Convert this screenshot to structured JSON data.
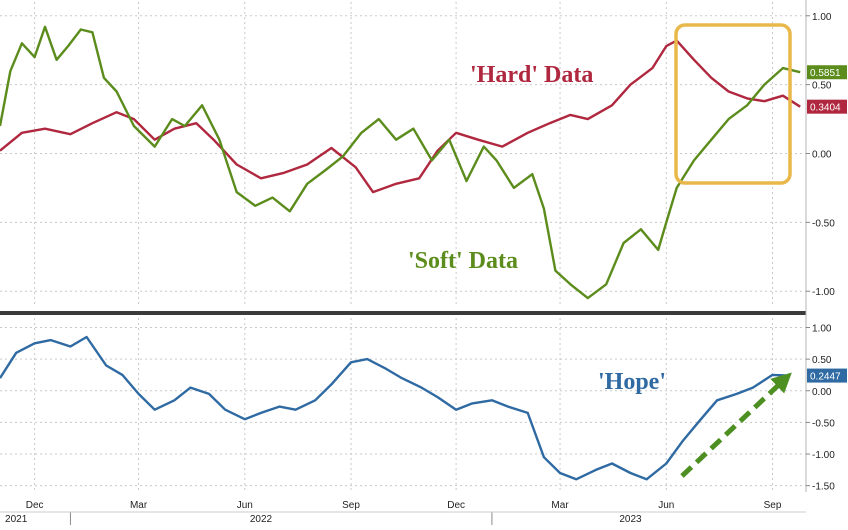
{
  "chart_data": [
    {
      "type": "line",
      "panel": "top",
      "ylim": [
        -1.1,
        1.1
      ],
      "yticks": [
        "1.00",
        "0.50",
        "0.00",
        "-0.50",
        "-1.00"
      ],
      "ytick_values": [
        1.0,
        0.5,
        0.0,
        -0.5,
        -1.0
      ],
      "x_domain": [
        "2021-11-01",
        "2023-09-30"
      ],
      "series": [
        {
          "name": "'Hard' Data",
          "color": "#b0283f",
          "last_label": "0.3404",
          "points": [
            [
              "2021-11-01",
              0.02
            ],
            [
              "2021-11-20",
              0.15
            ],
            [
              "2021-12-10",
              0.18
            ],
            [
              "2022-01-01",
              0.14
            ],
            [
              "2022-01-20",
              0.22
            ],
            [
              "2022-02-10",
              0.3
            ],
            [
              "2022-02-25",
              0.25
            ],
            [
              "2022-03-15",
              0.1
            ],
            [
              "2022-04-01",
              0.18
            ],
            [
              "2022-04-20",
              0.22
            ],
            [
              "2022-05-05",
              0.1
            ],
            [
              "2022-05-25",
              -0.08
            ],
            [
              "2022-06-15",
              -0.18
            ],
            [
              "2022-07-05",
              -0.14
            ],
            [
              "2022-07-25",
              -0.08
            ],
            [
              "2022-08-15",
              0.04
            ],
            [
              "2022-09-05",
              -0.1
            ],
            [
              "2022-09-20",
              -0.28
            ],
            [
              "2022-10-10",
              -0.22
            ],
            [
              "2022-10-30",
              -0.18
            ],
            [
              "2022-11-15",
              0.02
            ],
            [
              "2022-12-01",
              0.15
            ],
            [
              "2022-12-20",
              0.1
            ],
            [
              "2023-01-10",
              0.05
            ],
            [
              "2023-02-01",
              0.15
            ],
            [
              "2023-02-20",
              0.22
            ],
            [
              "2023-03-10",
              0.28
            ],
            [
              "2023-03-25",
              0.25
            ],
            [
              "2023-04-15",
              0.35
            ],
            [
              "2023-05-01",
              0.5
            ],
            [
              "2023-05-20",
              0.62
            ],
            [
              "2023-06-01",
              0.78
            ],
            [
              "2023-06-10",
              0.82
            ],
            [
              "2023-06-25",
              0.68
            ],
            [
              "2023-07-10",
              0.55
            ],
            [
              "2023-07-25",
              0.45
            ],
            [
              "2023-08-10",
              0.4
            ],
            [
              "2023-08-25",
              0.38
            ],
            [
              "2023-09-10",
              0.42
            ],
            [
              "2023-09-25",
              0.34
            ]
          ]
        },
        {
          "name": "'Soft' Data",
          "color": "#5b8c1c",
          "last_label": "0.5851",
          "points": [
            [
              "2021-11-01",
              0.2
            ],
            [
              "2021-11-10",
              0.6
            ],
            [
              "2021-11-20",
              0.8
            ],
            [
              "2021-12-01",
              0.7
            ],
            [
              "2021-12-10",
              0.92
            ],
            [
              "2021-12-20",
              0.68
            ],
            [
              "2021-12-30",
              0.78
            ],
            [
              "2022-01-10",
              0.9
            ],
            [
              "2022-01-20",
              0.88
            ],
            [
              "2022-01-30",
              0.55
            ],
            [
              "2022-02-10",
              0.45
            ],
            [
              "2022-02-25",
              0.2
            ],
            [
              "2022-03-15",
              0.05
            ],
            [
              "2022-03-30",
              0.25
            ],
            [
              "2022-04-10",
              0.2
            ],
            [
              "2022-04-25",
              0.35
            ],
            [
              "2022-05-10",
              0.1
            ],
            [
              "2022-05-25",
              -0.28
            ],
            [
              "2022-06-10",
              -0.38
            ],
            [
              "2022-06-25",
              -0.32
            ],
            [
              "2022-07-10",
              -0.42
            ],
            [
              "2022-07-25",
              -0.22
            ],
            [
              "2022-08-10",
              -0.12
            ],
            [
              "2022-08-25",
              -0.02
            ],
            [
              "2022-09-10",
              0.15
            ],
            [
              "2022-09-25",
              0.25
            ],
            [
              "2022-10-10",
              0.1
            ],
            [
              "2022-10-25",
              0.18
            ],
            [
              "2022-11-10",
              -0.05
            ],
            [
              "2022-11-25",
              0.1
            ],
            [
              "2022-12-10",
              -0.2
            ],
            [
              "2022-12-25",
              0.05
            ],
            [
              "2023-01-05",
              -0.05
            ],
            [
              "2023-01-20",
              -0.25
            ],
            [
              "2023-02-05",
              -0.15
            ],
            [
              "2023-02-15",
              -0.4
            ],
            [
              "2023-02-25",
              -0.85
            ],
            [
              "2023-03-10",
              -0.95
            ],
            [
              "2023-03-25",
              -1.05
            ],
            [
              "2023-04-10",
              -0.95
            ],
            [
              "2023-04-25",
              -0.65
            ],
            [
              "2023-05-10",
              -0.55
            ],
            [
              "2023-05-25",
              -0.7
            ],
            [
              "2023-06-01",
              -0.5
            ],
            [
              "2023-06-10",
              -0.25
            ],
            [
              "2023-06-25",
              -0.05
            ],
            [
              "2023-07-10",
              0.1
            ],
            [
              "2023-07-25",
              0.25
            ],
            [
              "2023-08-10",
              0.35
            ],
            [
              "2023-08-25",
              0.5
            ],
            [
              "2023-09-10",
              0.62
            ],
            [
              "2023-09-25",
              0.59
            ]
          ]
        }
      ],
      "annotations": [
        "'Hard' Data",
        "'Soft' Data"
      ]
    },
    {
      "type": "line",
      "panel": "bottom",
      "ylim": [
        -1.6,
        1.15
      ],
      "yticks": [
        "1.00",
        "0.50",
        "0.00",
        "-0.50",
        "-1.00",
        "-1.50"
      ],
      "ytick_values": [
        1.0,
        0.5,
        0.0,
        -0.5,
        -1.0,
        -1.5
      ],
      "x_domain": [
        "2021-11-01",
        "2023-09-30"
      ],
      "series": [
        {
          "name": "'Hope'",
          "color": "#2f6aa3",
          "last_label": "0.2447",
          "points": [
            [
              "2021-11-01",
              0.2
            ],
            [
              "2021-11-15",
              0.6
            ],
            [
              "2021-12-01",
              0.75
            ],
            [
              "2021-12-15",
              0.8
            ],
            [
              "2022-01-01",
              0.7
            ],
            [
              "2022-01-15",
              0.85
            ],
            [
              "2022-02-01",
              0.4
            ],
            [
              "2022-02-15",
              0.25
            ],
            [
              "2022-03-01",
              -0.05
            ],
            [
              "2022-03-15",
              -0.3
            ],
            [
              "2022-04-01",
              -0.15
            ],
            [
              "2022-04-15",
              0.05
            ],
            [
              "2022-05-01",
              -0.05
            ],
            [
              "2022-05-15",
              -0.3
            ],
            [
              "2022-06-01",
              -0.45
            ],
            [
              "2022-06-15",
              -0.35
            ],
            [
              "2022-07-01",
              -0.25
            ],
            [
              "2022-07-15",
              -0.3
            ],
            [
              "2022-08-01",
              -0.15
            ],
            [
              "2022-08-15",
              0.1
            ],
            [
              "2022-09-01",
              0.45
            ],
            [
              "2022-09-15",
              0.5
            ],
            [
              "2022-10-01",
              0.35
            ],
            [
              "2022-10-15",
              0.2
            ],
            [
              "2022-11-01",
              0.05
            ],
            [
              "2022-11-15",
              -0.1
            ],
            [
              "2022-12-01",
              -0.3
            ],
            [
              "2022-12-15",
              -0.2
            ],
            [
              "2023-01-01",
              -0.15
            ],
            [
              "2023-01-15",
              -0.25
            ],
            [
              "2023-02-01",
              -0.35
            ],
            [
              "2023-02-15",
              -1.05
            ],
            [
              "2023-03-01",
              -1.3
            ],
            [
              "2023-03-15",
              -1.4
            ],
            [
              "2023-04-01",
              -1.25
            ],
            [
              "2023-04-15",
              -1.15
            ],
            [
              "2023-05-01",
              -1.3
            ],
            [
              "2023-05-15",
              -1.4
            ],
            [
              "2023-06-01",
              -1.15
            ],
            [
              "2023-06-15",
              -0.8
            ],
            [
              "2023-07-01",
              -0.45
            ],
            [
              "2023-07-15",
              -0.15
            ],
            [
              "2023-08-01",
              -0.05
            ],
            [
              "2023-08-15",
              0.05
            ],
            [
              "2023-09-01",
              0.25
            ],
            [
              "2023-09-15",
              0.24
            ]
          ]
        }
      ],
      "annotations": [
        "'Hope'"
      ]
    }
  ],
  "x_axis": {
    "ticks": [
      {
        "label": "Dec",
        "date": "2021-12-01"
      },
      {
        "label": "Mar",
        "date": "2022-03-01"
      },
      {
        "label": "Jun",
        "date": "2022-06-01"
      },
      {
        "label": "Sep",
        "date": "2022-09-01"
      },
      {
        "label": "Dec",
        "date": "2022-12-01"
      },
      {
        "label": "Mar",
        "date": "2023-03-01"
      },
      {
        "label": "Jun",
        "date": "2023-06-01"
      },
      {
        "label": "Sep",
        "date": "2023-09-01"
      }
    ],
    "years": [
      {
        "label": "2021",
        "date": "2021-11-15"
      },
      {
        "label": "2022",
        "date": "2022-06-15"
      },
      {
        "label": "2023",
        "date": "2023-05-01"
      }
    ]
  },
  "colors": {
    "highlight_box": "#e8b84a",
    "trend_arrow": "#4e8f22",
    "divider": "#3a3a3a",
    "grid": "#c9c9c9"
  }
}
